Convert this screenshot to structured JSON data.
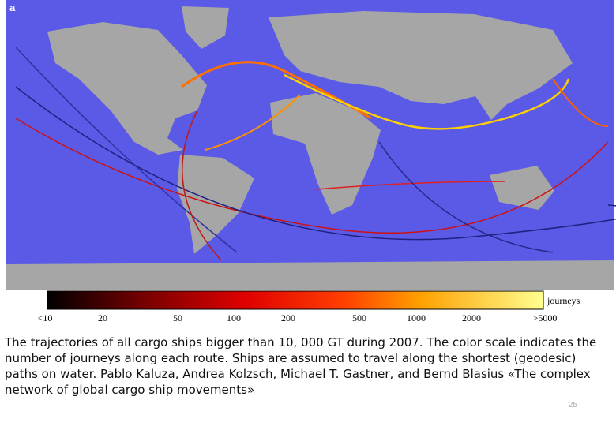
{
  "figure": {
    "panel_label": "a",
    "colorbar": {
      "title": "journeys",
      "labels": [
        "<10",
        "20",
        "50",
        "100",
        "200",
        "500",
        "1000",
        "2000",
        ">5000"
      ]
    },
    "caption": "The trajectories of all cargo ships bigger than 10, 000 GT during 2007. The color scale indicates the number of journeys along each route. Ships are assumed to travel along the shortest (geodesic) paths on water. Pablo Kaluza, Andrea Kolzsch, Michael T. Gastner, and Bernd Blasius «The complex network of global cargo ship movements»",
    "slide_number": "25"
  }
}
